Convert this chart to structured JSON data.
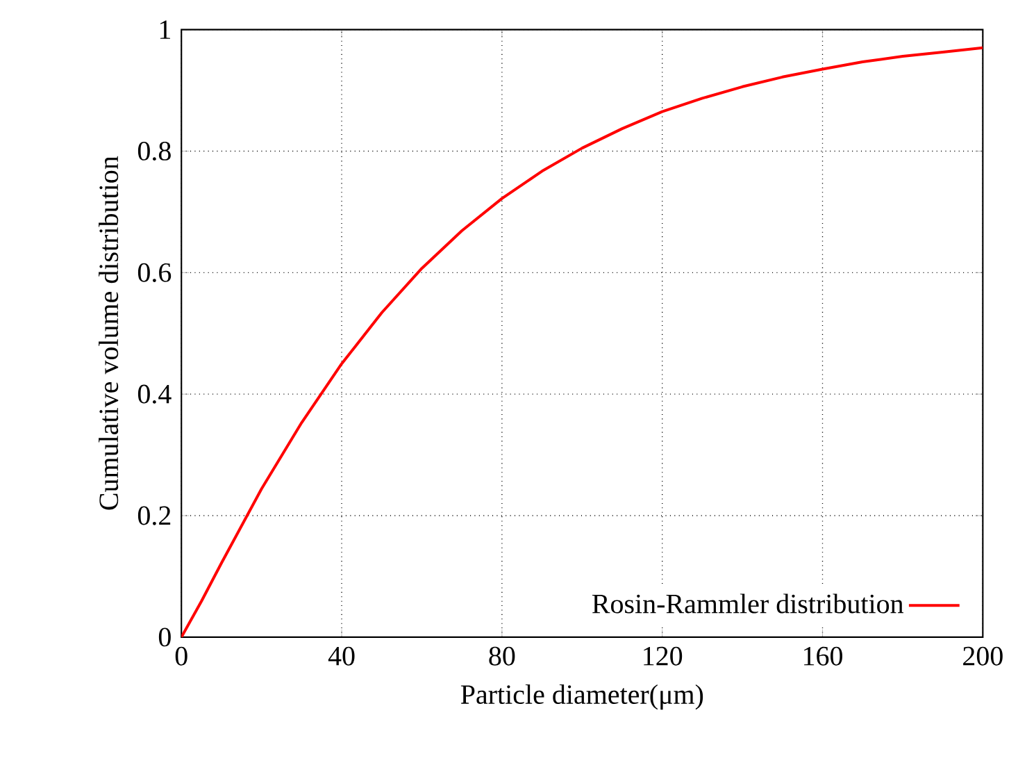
{
  "chart_data": {
    "type": "line",
    "xlabel": "Particle diameter(μm)",
    "ylabel": "Cumulative volume distribution",
    "x": [
      0,
      5,
      10,
      20,
      30,
      40,
      50,
      60,
      70,
      80,
      90,
      100,
      110,
      120,
      130,
      140,
      150,
      160,
      170,
      180,
      190,
      200
    ],
    "series": [
      {
        "name": "Rosin-Rammler distribution",
        "color": "#ff0000",
        "values": [
          0,
          0.059,
          0.122,
          0.244,
          0.353,
          0.45,
          0.534,
          0.607,
          0.669,
          0.722,
          0.767,
          0.805,
          0.837,
          0.865,
          0.887,
          0.906,
          0.922,
          0.935,
          0.947,
          0.956,
          0.963,
          0.97
        ]
      }
    ],
    "xlim": [
      0,
      200
    ],
    "ylim": [
      0,
      1
    ],
    "xticks": [
      0,
      40,
      80,
      120,
      160,
      200
    ],
    "yticks": [
      0,
      0.2,
      0.4,
      0.6,
      0.8,
      1
    ],
    "grid": true,
    "legend": "bottom right",
    "line_style": "solid",
    "marker": "none"
  }
}
